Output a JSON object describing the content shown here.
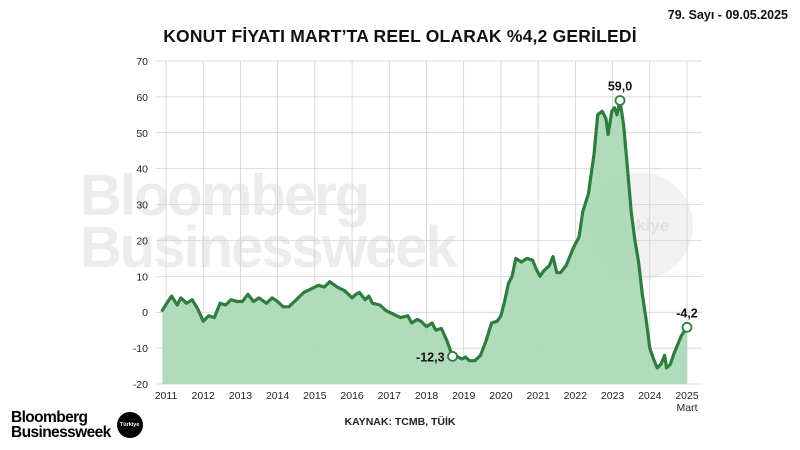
{
  "issue": "79. Sayı - 09.05.2025",
  "title": "KONUT FİYATI MART’TA REEL OLARAK %4,2 GERİLEDİ",
  "source": "KAYNAK: TCMB, TÜİK",
  "logo": {
    "line1": "Bloomberg",
    "line2": "Businessweek",
    "badge": "Türkiye"
  },
  "watermark": {
    "line1": "Bloomberg",
    "line2": "Businessweek",
    "badge": "Türkiye"
  },
  "chart_data": {
    "type": "area",
    "title": "KONUT FİYATI MART’TA REEL OLARAK %4,2 GERİLEDİ",
    "ylim": [
      -20,
      70
    ],
    "yticks": [
      -20,
      -10,
      0,
      10,
      20,
      30,
      40,
      50,
      60,
      70
    ],
    "xlim": [
      2010.9,
      2025.3
    ],
    "xticks": [
      {
        "value": 2011,
        "label": "2011"
      },
      {
        "value": 2012,
        "label": "2012"
      },
      {
        "value": 2013,
        "label": "2013"
      },
      {
        "value": 2014,
        "label": "2014"
      },
      {
        "value": 2015,
        "label": "2015"
      },
      {
        "value": 2016,
        "label": "2016"
      },
      {
        "value": 2017,
        "label": "2017"
      },
      {
        "value": 2018,
        "label": "2018"
      },
      {
        "value": 2019,
        "label": "2019"
      },
      {
        "value": 2020,
        "label": "2020"
      },
      {
        "value": 2021,
        "label": "2021"
      },
      {
        "value": 2022,
        "label": "2022"
      },
      {
        "value": 2023,
        "label": "2023"
      },
      {
        "value": 2024,
        "label": "2024"
      },
      {
        "value": 2025,
        "label": "2025"
      }
    ],
    "xtick_sublabel": {
      "value": 2025,
      "label": "Mart"
    },
    "grid": true,
    "colors": {
      "line": "#2e7d3e",
      "fill": "#a8d8b5",
      "grid": "#cccccc"
    },
    "points": [
      [
        2010.9,
        0.5
      ],
      [
        2011.05,
        3
      ],
      [
        2011.15,
        4.5
      ],
      [
        2011.3,
        2
      ],
      [
        2011.4,
        4
      ],
      [
        2011.55,
        2.5
      ],
      [
        2011.7,
        3.5
      ],
      [
        2011.85,
        1
      ],
      [
        2012.0,
        -2.5
      ],
      [
        2012.15,
        -1
      ],
      [
        2012.3,
        -1.5
      ],
      [
        2012.45,
        2.5
      ],
      [
        2012.6,
        2
      ],
      [
        2012.75,
        3.5
      ],
      [
        2012.9,
        3
      ],
      [
        2013.05,
        3
      ],
      [
        2013.2,
        5
      ],
      [
        2013.35,
        3
      ],
      [
        2013.5,
        4
      ],
      [
        2013.7,
        2.5
      ],
      [
        2013.85,
        4
      ],
      [
        2014.0,
        3
      ],
      [
        2014.15,
        1.5
      ],
      [
        2014.3,
        1.5
      ],
      [
        2014.5,
        3.5
      ],
      [
        2014.7,
        5.5
      ],
      [
        2014.9,
        6.5
      ],
      [
        2015.1,
        7.5
      ],
      [
        2015.25,
        7
      ],
      [
        2015.4,
        8.5
      ],
      [
        2015.6,
        7
      ],
      [
        2015.8,
        6
      ],
      [
        2016.0,
        4
      ],
      [
        2016.1,
        5
      ],
      [
        2016.2,
        5.5
      ],
      [
        2016.35,
        3.5
      ],
      [
        2016.45,
        4.5
      ],
      [
        2016.55,
        2.5
      ],
      [
        2016.75,
        2
      ],
      [
        2016.9,
        0.5
      ],
      [
        2017.1,
        -0.5
      ],
      [
        2017.3,
        -1.5
      ],
      [
        2017.5,
        -1
      ],
      [
        2017.6,
        -3
      ],
      [
        2017.75,
        -2
      ],
      [
        2017.85,
        -2.5
      ],
      [
        2018.0,
        -4
      ],
      [
        2018.15,
        -3
      ],
      [
        2018.25,
        -5
      ],
      [
        2018.4,
        -4.5
      ],
      [
        2018.55,
        -8
      ],
      [
        2018.7,
        -12.3
      ],
      [
        2018.85,
        -12.5
      ],
      [
        2018.95,
        -13
      ],
      [
        2019.05,
        -12.5
      ],
      [
        2019.15,
        -13.5
      ],
      [
        2019.3,
        -13.5
      ],
      [
        2019.45,
        -12
      ],
      [
        2019.6,
        -8
      ],
      [
        2019.75,
        -3
      ],
      [
        2019.9,
        -2.5
      ],
      [
        2020.0,
        -1
      ],
      [
        2020.1,
        3
      ],
      [
        2020.2,
        8
      ],
      [
        2020.3,
        10
      ],
      [
        2020.4,
        15
      ],
      [
        2020.55,
        14
      ],
      [
        2020.7,
        15
      ],
      [
        2020.85,
        14.5
      ],
      [
        2020.95,
        12
      ],
      [
        2021.05,
        10
      ],
      [
        2021.15,
        11.5
      ],
      [
        2021.3,
        13
      ],
      [
        2021.4,
        15.5
      ],
      [
        2021.5,
        11
      ],
      [
        2021.6,
        11
      ],
      [
        2021.75,
        13
      ],
      [
        2021.95,
        18
      ],
      [
        2022.1,
        21
      ],
      [
        2022.2,
        28
      ],
      [
        2022.35,
        33
      ],
      [
        2022.5,
        44
      ],
      [
        2022.6,
        55
      ],
      [
        2022.72,
        56
      ],
      [
        2022.82,
        54
      ],
      [
        2022.88,
        49.5
      ],
      [
        2022.98,
        56
      ],
      [
        2023.05,
        57
      ],
      [
        2023.12,
        55
      ],
      [
        2023.2,
        59.0
      ],
      [
        2023.3,
        52
      ],
      [
        2023.4,
        40
      ],
      [
        2023.5,
        28
      ],
      [
        2023.6,
        20
      ],
      [
        2023.7,
        14
      ],
      [
        2023.8,
        5
      ],
      [
        2023.9,
        -2
      ],
      [
        2024.0,
        -10
      ],
      [
        2024.1,
        -13
      ],
      [
        2024.2,
        -15.5
      ],
      [
        2024.3,
        -14.5
      ],
      [
        2024.4,
        -12
      ],
      [
        2024.45,
        -15.5
      ],
      [
        2024.55,
        -14.5
      ],
      [
        2024.65,
        -11.5
      ],
      [
        2024.75,
        -9
      ],
      [
        2024.85,
        -6.5
      ],
      [
        2025.0,
        -4.2
      ]
    ],
    "annotations": [
      {
        "x": 2018.7,
        "y": -12.3,
        "label": "-12,3",
        "anchor": "left"
      },
      {
        "x": 2023.2,
        "y": 59.0,
        "label": "59,0",
        "anchor": "above"
      },
      {
        "x": 2025.0,
        "y": -4.2,
        "label": "-4,2",
        "anchor": "above"
      }
    ]
  }
}
